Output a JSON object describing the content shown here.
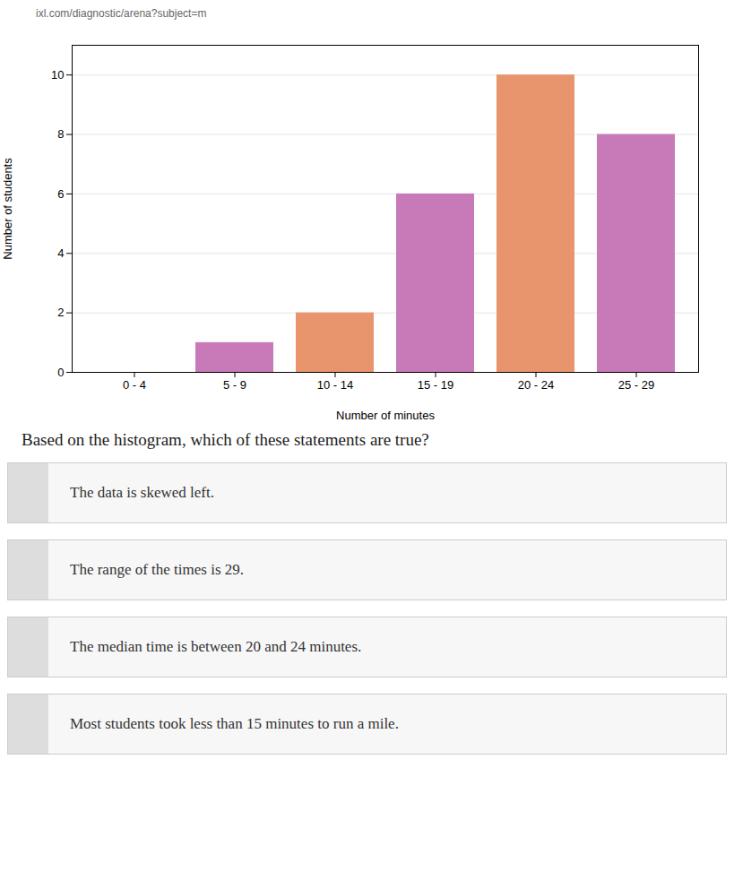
{
  "chart_data": {
    "type": "bar",
    "categories": [
      "0 - 4",
      "5 - 9",
      "10 - 14",
      "15 - 19",
      "20 - 24",
      "25 - 29"
    ],
    "values": [
      0,
      1,
      2,
      6,
      10,
      8
    ],
    "colors": [
      "none",
      "#c87ab8",
      "#e8956d",
      "#c87ab8",
      "#e8956d",
      "#c87ab8"
    ],
    "xlabel": "Number of minutes",
    "ylabel": "Number of students",
    "ylim": [
      0,
      11
    ],
    "yticks": [
      0,
      2,
      4,
      6,
      8,
      10
    ],
    "grid": true,
    "annotations": [
      "ixl.com/diagnostic/arena?subject=m",
      "Based on the histogram, which of these statements are true?",
      "The data is skewed left.",
      "The range of the times is 29.",
      "The median time is between 20 and 24 minutes.",
      "Most students took less than 15 minutes to run a mile."
    ]
  }
}
